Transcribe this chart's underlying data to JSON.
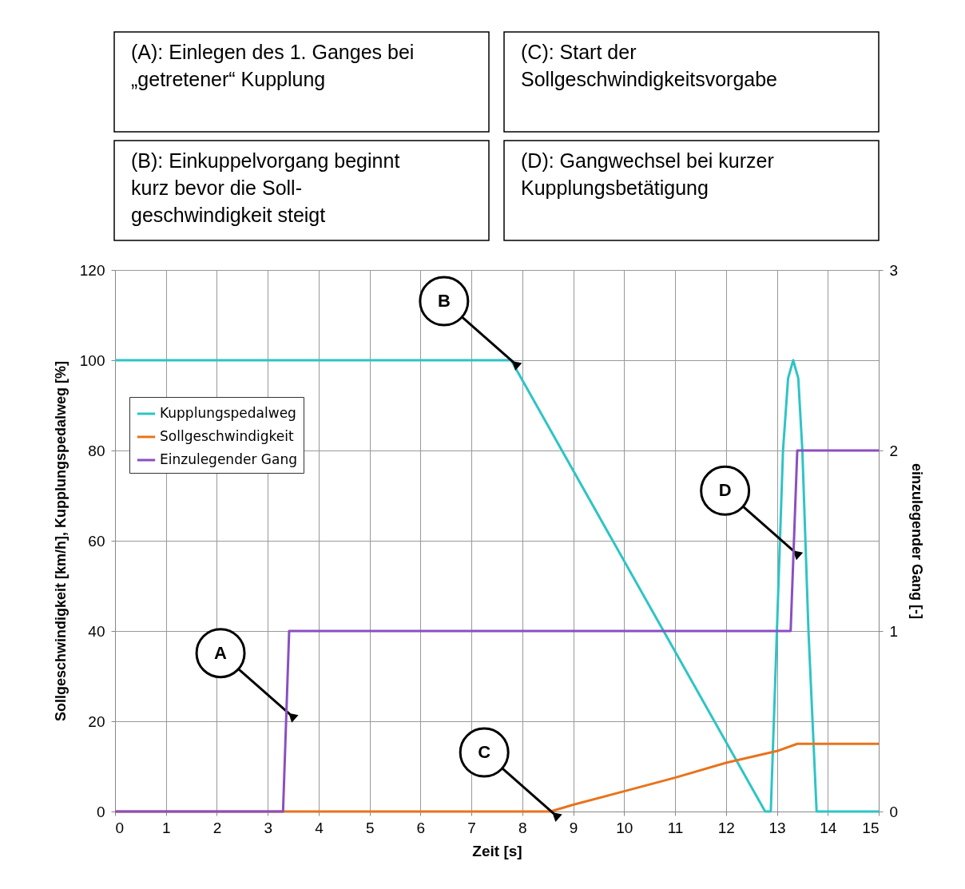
{
  "chart_data": {
    "type": "line",
    "xlabel": "Zeit [s]",
    "ylabel": "Sollgeschwindigkeit [km/h], Kupplungspedalweg [%]",
    "y2label": "einzulegender Gang [-]",
    "xlim": [
      0,
      15
    ],
    "xticks": [
      0,
      1,
      2,
      3,
      4,
      5,
      6,
      7,
      8,
      9,
      10,
      11,
      12,
      13,
      14,
      15
    ],
    "ylim": [
      0,
      120
    ],
    "yticks": [
      0,
      20,
      40,
      60,
      80,
      100,
      120
    ],
    "y2lim": [
      0,
      3
    ],
    "y2ticks": [
      0,
      1,
      2,
      3
    ],
    "grid": true,
    "legend": "top left",
    "marker": "none",
    "line_style": "solid",
    "series": [
      {
        "name": "Kupplungspedalweg",
        "color": "#2ec4c6",
        "x": [
          0,
          7.78,
          12.77,
          12.88,
          13.0,
          13.12,
          13.22,
          13.32,
          13.42,
          13.5,
          13.62,
          13.78,
          15
        ],
        "values": [
          100,
          100,
          0,
          0,
          40,
          80,
          96,
          100,
          96,
          80,
          40,
          0,
          0
        ]
      },
      {
        "name": "Sollgeschwindigkeit",
        "color": "#e8731c",
        "x": [
          0,
          8.55,
          9,
          10,
          11,
          12,
          13,
          13.4,
          15
        ],
        "values": [
          0,
          0,
          1.5,
          4.5,
          7.5,
          10.8,
          13.4,
          15,
          15
        ]
      },
      {
        "name": "Einzulegender Gang",
        "color": "#8a4fc2",
        "axis": "y2",
        "x": [
          0,
          3.3,
          3.42,
          13.27,
          13.4,
          15
        ],
        "values": [
          0,
          0,
          1,
          1,
          2,
          2
        ]
      }
    ],
    "annotations": [
      "(A): Einlegen des 1. Ganges bei\n„getretener“ Kupplung",
      "(C): Start der\nSollgeschwindigkeitsvorgabe",
      "(B): Einkuppelvorgang beginnt\nkurz bevor die Soll-\ngeschwindigkeit steigt",
      "(D): Gangwechsel bei kurzer\nKupplungsbetätigung",
      {
        "text": "A",
        "x": 3.39,
        "y": 22
      },
      {
        "text": "B",
        "x": 7.78,
        "y": 100
      },
      {
        "text": "C",
        "x": 8.57,
        "y": 0
      },
      {
        "text": "D",
        "x": 13.3,
        "y": 58
      }
    ]
  }
}
